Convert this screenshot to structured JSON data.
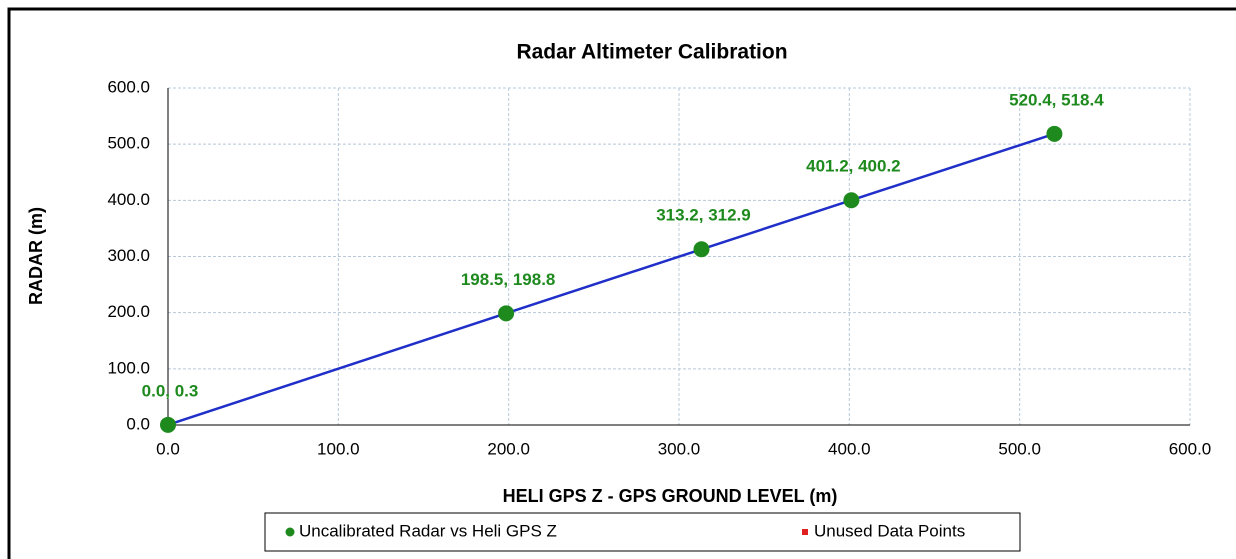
{
  "chart_data": {
    "type": "scatter",
    "title": "Radar Altimeter Calibration",
    "x_label": "HELI GPS Z - GPS GROUND LEVEL (m)",
    "y_label": "RADAR (m)",
    "xlim": [
      0,
      600
    ],
    "ylim": [
      0,
      600
    ],
    "xticks": [
      {
        "value": 0,
        "label": "0.0"
      },
      {
        "value": 100,
        "label": "100.0"
      },
      {
        "value": 200,
        "label": "200.0"
      },
      {
        "value": 300,
        "label": "300.0"
      },
      {
        "value": 400,
        "label": "400.0"
      },
      {
        "value": 500,
        "label": "500.0"
      },
      {
        "value": 600,
        "label": "600.0"
      }
    ],
    "yticks": [
      {
        "value": 0,
        "label": "0.0"
      },
      {
        "value": 100,
        "label": "100.0"
      },
      {
        "value": 200,
        "label": "200.0"
      },
      {
        "value": 300,
        "label": "300.0"
      },
      {
        "value": 400,
        "label": "400.0"
      },
      {
        "value": 500,
        "label": "500.0"
      },
      {
        "value": 600,
        "label": "600.0"
      }
    ],
    "grid": true,
    "series": [
      {
        "name": "Uncalibrated Radar vs Heli GPS Z",
        "color": "#1e8a1e",
        "line_color": "#1f2fc8",
        "x": [
          0.0,
          198.5,
          313.2,
          401.2,
          520.4
        ],
        "values": [
          0.3,
          198.8,
          312.9,
          400.2,
          518.4
        ],
        "value_labels": [
          "0.0, 0.3",
          "198.5, 198.8",
          "313.2, 312.9",
          "401.2, 400.2",
          "520.4, 518.4"
        ]
      },
      {
        "name": "Unused Data Points",
        "color": "#e02020",
        "x": [],
        "values": []
      }
    ]
  }
}
